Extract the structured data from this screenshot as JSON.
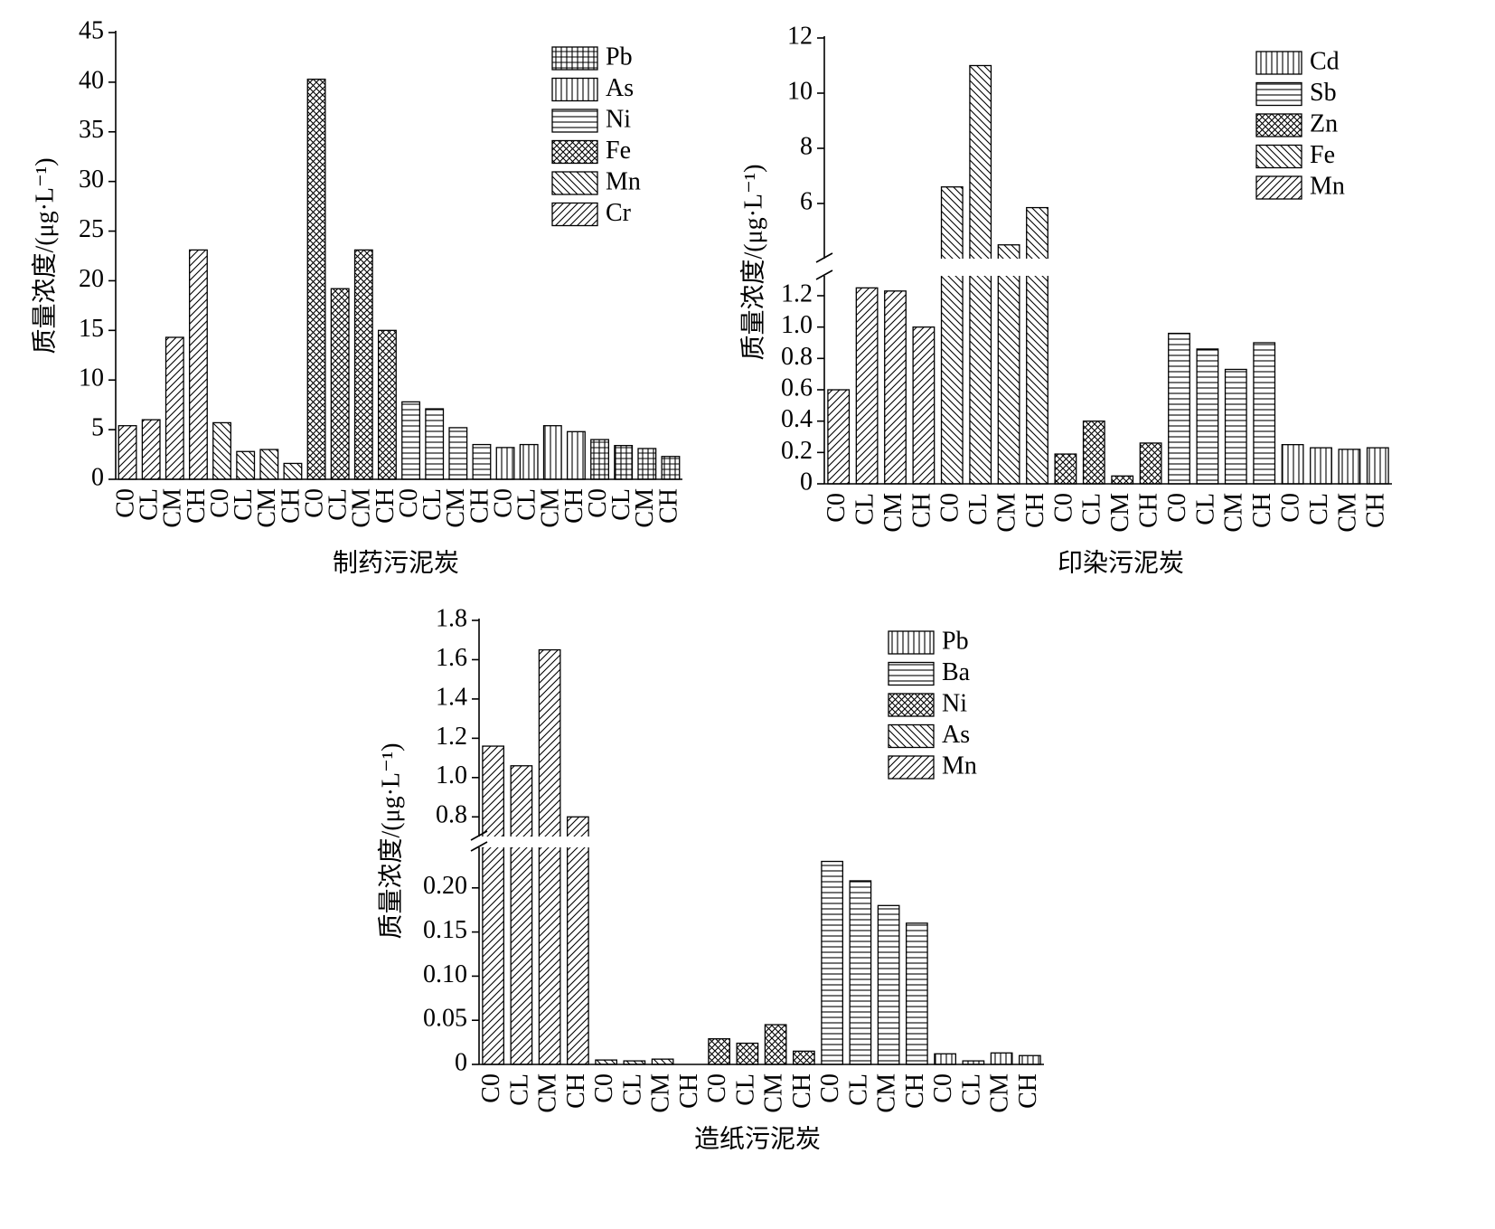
{
  "chart_data": [
    {
      "type": "bar",
      "xlabel": "制药污泥炭",
      "ylabel": "质量浓度/(μg·L⁻¹)",
      "categories": [
        "C0",
        "CL",
        "CM",
        "CH"
      ],
      "ylim": [
        0,
        45
      ],
      "yticks": [
        0,
        5,
        10,
        15,
        20,
        25,
        30,
        35,
        40,
        45
      ],
      "series": [
        {
          "name": "Cr",
          "color": "#000000",
          "pattern": "fwd",
          "values": [
            5.4,
            6.0,
            14.3,
            23.1
          ]
        },
        {
          "name": "Mn",
          "color": "#000000",
          "pattern": "back",
          "values": [
            5.7,
            2.8,
            3.0,
            1.6
          ]
        },
        {
          "name": "Fe",
          "color": "#000000",
          "pattern": "cross",
          "values": [
            40.3,
            19.2,
            23.1,
            15.0
          ]
        },
        {
          "name": "Ni",
          "color": "#000000",
          "pattern": "horiz",
          "values": [
            7.8,
            7.1,
            5.2,
            3.5
          ]
        },
        {
          "name": "As",
          "color": "#000000",
          "pattern": "vert",
          "values": [
            3.2,
            3.5,
            5.4,
            4.8
          ]
        },
        {
          "name": "Pb",
          "color": "#000000",
          "pattern": "grid",
          "values": [
            4.0,
            3.4,
            3.1,
            2.3
          ]
        }
      ]
    },
    {
      "type": "bar",
      "xlabel": "印染污泥炭",
      "ylabel": "质量浓度/(μg·L⁻¹)",
      "categories": [
        "C0",
        "CL",
        "CM",
        "CH"
      ],
      "ylim": [
        0,
        1.35
      ],
      "yticks": [
        0,
        0.2,
        0.4,
        0.6,
        0.8,
        {
          "value": 1,
          "label": "1.0"
        },
        1.2
      ],
      "upper_ylim": [
        4,
        12
      ],
      "upper_yticks": [
        6,
        8,
        10,
        12
      ],
      "series": [
        {
          "name": "Mn",
          "color": "#000000",
          "pattern": "fwd",
          "values": [
            0.6,
            1.25,
            1.23,
            1.0
          ]
        },
        {
          "name": "Fe",
          "color": "#000000",
          "pattern": "back",
          "values": [
            6.6,
            11.0,
            4.5,
            5.85
          ]
        },
        {
          "name": "Zn",
          "color": "#000000",
          "pattern": "cross",
          "values": [
            0.19,
            0.4,
            0.05,
            0.26
          ]
        },
        {
          "name": "Sb",
          "color": "#000000",
          "pattern": "horiz",
          "values": [
            0.96,
            0.86,
            0.73,
            0.9
          ]
        },
        {
          "name": "Cd",
          "color": "#000000",
          "pattern": "vert",
          "values": [
            0.25,
            0.23,
            0.22,
            0.23
          ]
        }
      ]
    },
    {
      "type": "bar",
      "xlabel": "造纸污泥炭",
      "ylabel": "质量浓度/(μg·L⁻¹)",
      "categories": [
        "C0",
        "CL",
        "CM",
        "CH"
      ],
      "ylim": [
        0,
        0.25
      ],
      "yticks": [
        0,
        0.05,
        {
          "value": 0.1,
          "label": "0.10"
        },
        0.15,
        {
          "value": 0.2,
          "label": "0.20"
        }
      ],
      "upper_ylim": [
        0.7,
        1.8
      ],
      "upper_yticks": [
        0.8,
        {
          "value": 1,
          "label": "1.0"
        },
        1.2,
        1.4,
        1.6,
        1.8
      ],
      "series": [
        {
          "name": "Mn",
          "color": "#000000",
          "pattern": "fwd",
          "values": [
            1.16,
            1.06,
            1.65,
            0.8
          ]
        },
        {
          "name": "As",
          "color": "#000000",
          "pattern": "back",
          "values": [
            0.005,
            0.004,
            0.006,
            0.0
          ]
        },
        {
          "name": "Ni",
          "color": "#000000",
          "pattern": "cross",
          "values": [
            0.029,
            0.024,
            0.045,
            0.015
          ]
        },
        {
          "name": "Ba",
          "color": "#000000",
          "pattern": "horiz",
          "values": [
            0.23,
            0.208,
            0.18,
            0.16
          ]
        },
        {
          "name": "Pb",
          "color": "#000000",
          "pattern": "vert",
          "values": [
            0.012,
            0.004,
            0.013,
            0.01
          ]
        }
      ]
    }
  ]
}
